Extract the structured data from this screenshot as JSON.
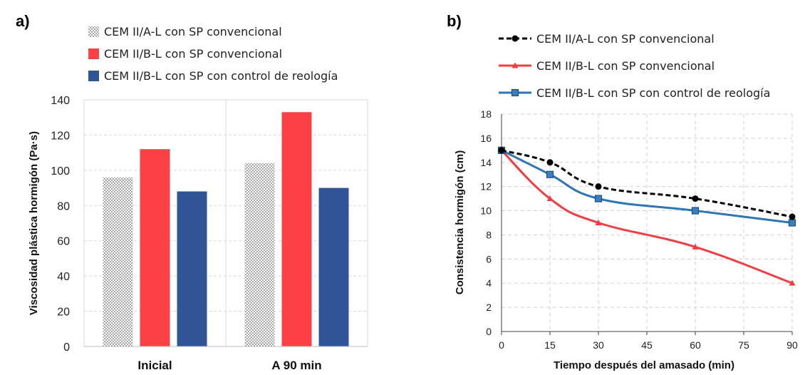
{
  "chart_data": [
    {
      "panel": "a)",
      "type": "bar",
      "categories": [
        "Inicial",
        "A 90 min"
      ],
      "series": [
        {
          "name": "CEM II/A-L con SP convencional",
          "color": "#c8c8c8",
          "pattern": "dotted",
          "values": [
            96,
            104
          ]
        },
        {
          "name": "CEM II/B-L con SP convencional",
          "color": "#fb4146",
          "values": [
            112,
            133
          ]
        },
        {
          "name": "CEM II/B-L con SP con control de reología",
          "color": "#2f5597",
          "values": [
            88,
            90
          ]
        }
      ],
      "ylabel": "Viscosidad plástica hormigón (Pa·s)",
      "xlabel": "",
      "ylim": [
        0,
        140
      ],
      "yticks": [
        0,
        20,
        40,
        60,
        80,
        100,
        120,
        140
      ],
      "grid": "horizontal dashed",
      "legend": "top"
    },
    {
      "panel": "b)",
      "type": "line",
      "x": [
        0,
        15,
        30,
        60,
        90
      ],
      "series": [
        {
          "name": "CEM II/A-L con SP convencional",
          "color": "#000000",
          "dash": "dashed",
          "marker": "circle",
          "values": [
            15,
            14,
            12,
            11,
            9.5
          ]
        },
        {
          "name": "CEM II/B-L con SP convencional",
          "color": "#ef3e44",
          "marker": "triangle",
          "values": [
            15,
            11,
            9,
            7,
            4
          ]
        },
        {
          "name": "CEM II/B-L con SP con control de reología",
          "color": "#2e75b6",
          "marker": "square",
          "values": [
            15,
            13,
            11,
            10,
            9
          ]
        }
      ],
      "xlabel": "Tiempo después del amasado (min)",
      "ylabel": "Consistencia hormigón (cm)",
      "xlim": [
        0,
        90
      ],
      "ylim": [
        0,
        18
      ],
      "xticks": [
        0,
        15,
        30,
        45,
        60,
        75,
        90
      ],
      "yticks": [
        0,
        2,
        4,
        6,
        8,
        10,
        12,
        14,
        16,
        18
      ],
      "grid": "both dashed",
      "legend": "top"
    }
  ]
}
